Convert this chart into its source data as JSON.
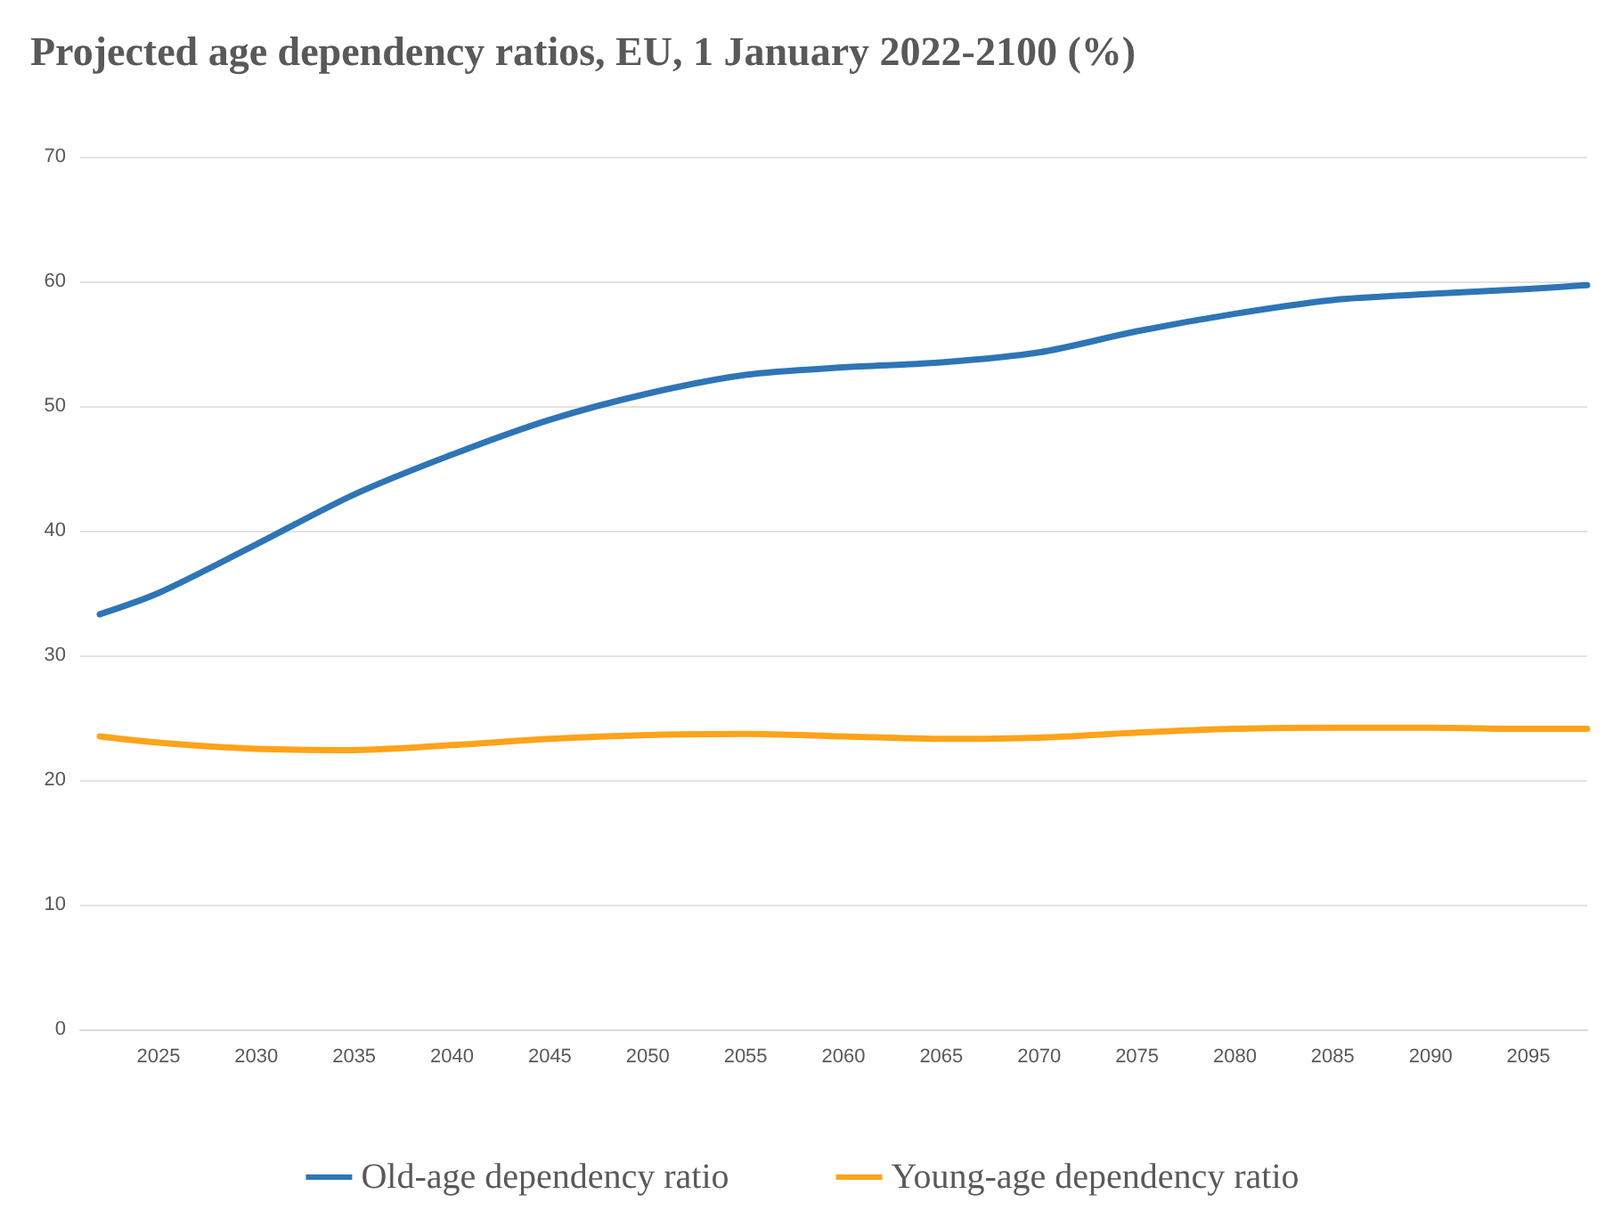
{
  "chart_data": {
    "type": "line",
    "title": "Projected age dependency ratios, EU, 1 January 2022-2100 (%)",
    "x": [
      2022,
      2025,
      2030,
      2035,
      2040,
      2045,
      2050,
      2055,
      2060,
      2065,
      2070,
      2075,
      2080,
      2085,
      2090,
      2095,
      2098
    ],
    "series": [
      {
        "name": "Old-age dependency ratio",
        "color": "#2e75b6",
        "values": [
          33.3,
          35.0,
          38.9,
          42.9,
          46.1,
          48.9,
          51.0,
          52.5,
          53.1,
          53.5,
          54.3,
          56.0,
          57.4,
          58.5,
          59.0,
          59.4,
          59.7
        ]
      },
      {
        "name": "Young-age dependency ratio",
        "color": "#ffa31a",
        "values": [
          23.5,
          23.0,
          22.5,
          22.4,
          22.8,
          23.3,
          23.6,
          23.7,
          23.5,
          23.3,
          23.4,
          23.8,
          24.1,
          24.2,
          24.2,
          24.1,
          24.1
        ]
      }
    ],
    "xlim": [
      2021,
      2098
    ],
    "xticks": [
      2025,
      2030,
      2035,
      2040,
      2045,
      2050,
      2055,
      2060,
      2065,
      2070,
      2075,
      2080,
      2085,
      2090,
      2095
    ],
    "ylim": [
      0,
      70
    ],
    "yticks": [
      0,
      10,
      20,
      30,
      40,
      50,
      60,
      70
    ],
    "grid": "y",
    "legend": "bottom",
    "marker": "none",
    "line_style": "solid"
  }
}
